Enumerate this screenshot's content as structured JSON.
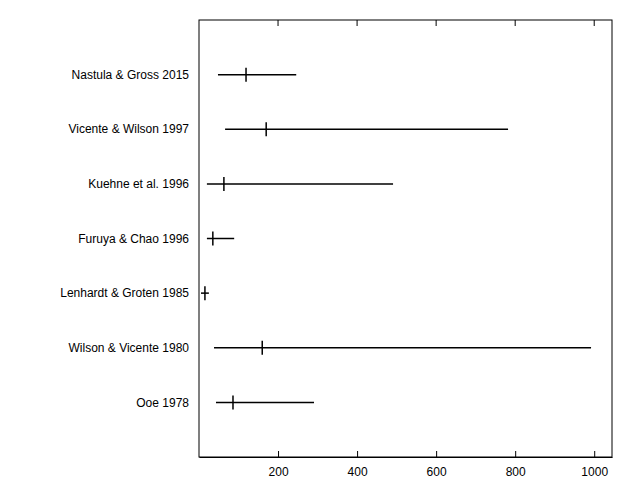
{
  "chart_data": {
    "type": "interval",
    "orientation": "horizontal",
    "categories": [
      "Nastula & Gross 2015",
      "Vicente & Wilson 1997",
      "Kuehne et al. 1996",
      "Furuya & Chao 1996",
      "Lenhardt & Groten 1985",
      "Wilson & Vicente 1980",
      "Ooe 1978"
    ],
    "values": [
      119,
      170,
      63,
      35,
      15,
      160,
      86
    ],
    "low": [
      48,
      66,
      20,
      20,
      5,
      38,
      43
    ],
    "high": [
      246,
      782,
      491,
      89,
      25,
      992,
      291
    ],
    "color": "#000000",
    "xlim": [
      0,
      1045
    ],
    "xticks": [
      200,
      400,
      600,
      800,
      1000
    ],
    "grid": false
  }
}
